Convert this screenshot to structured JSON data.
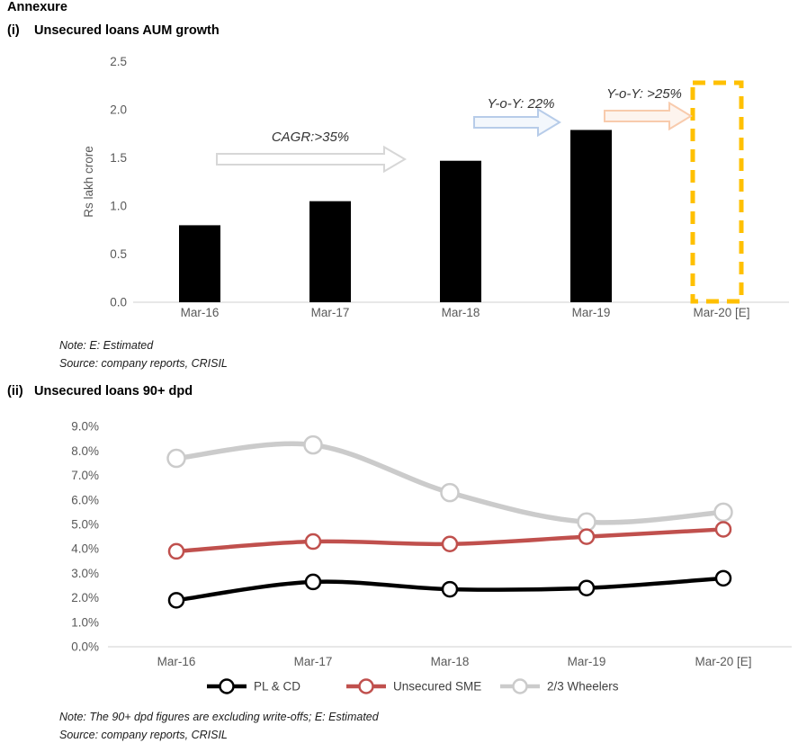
{
  "page": {
    "heading": "Annexure",
    "sections": [
      {
        "index_label": "(i)",
        "title": "Unsecured loans AUM growth",
        "notes": [
          "Note: E: Estimated",
          "Source: company reports, CRISIL"
        ]
      },
      {
        "index_label": "(ii)",
        "title": "Unsecured loans 90+ dpd",
        "notes": [
          "Note: The 90+ dpd figures are excluding write-offs; E: Estimated",
          "Source: company reports, CRISIL"
        ]
      }
    ]
  },
  "colors": {
    "axis_text": "#595959",
    "axis_line": "#d9d9d9",
    "bar": "#000000",
    "estimated_outline": "#FFC000",
    "annotation_text": "#333333",
    "legend_text": "#404040"
  },
  "chart_data": [
    {
      "type": "bar",
      "title": "Unsecured loans AUM growth",
      "ylabel": "Rs lakh crore",
      "xlabel": "",
      "categories": [
        "Mar-16",
        "Mar-17",
        "Mar-18",
        "Mar-19",
        "Mar-20 [E]"
      ],
      "values": [
        0.8,
        1.05,
        1.47,
        1.79,
        null
      ],
      "estimated_bar": {
        "category": "Mar-20 [E]",
        "top_value": 2.28,
        "style": "dashed-outline",
        "color": "#FFC000"
      },
      "ylim": [
        0,
        2.5
      ],
      "ytick_step": 0.5,
      "yticks": [
        "0.0",
        "0.5",
        "1.0",
        "1.5",
        "2.0",
        "2.5"
      ],
      "grid": false,
      "bar_color": "#000000",
      "annotations": [
        {
          "text": "CAGR:>35%",
          "arrow_stroke": "#d7d7d7",
          "arrow_fill": "#ffffff"
        },
        {
          "text": "Y-o-Y: 22%",
          "arrow_stroke": "#b7cce9",
          "arrow_fill": "#f3f7fc"
        },
        {
          "text": "Y-o-Y: >25%",
          "arrow_stroke": "#f8cbad",
          "arrow_fill": "#fdf4ee"
        }
      ]
    },
    {
      "type": "line",
      "title": "Unsecured loans 90+ dpd",
      "categories": [
        "Mar-16",
        "Mar-17",
        "Mar-18",
        "Mar-19",
        "Mar-20 [E]"
      ],
      "series": [
        {
          "name": "PL & CD",
          "color": "#000000",
          "values": [
            1.9,
            2.65,
            2.35,
            2.4,
            2.8
          ]
        },
        {
          "name": "Unsecured SME",
          "color": "#C0504D",
          "values": [
            3.9,
            4.3,
            4.2,
            4.5,
            4.8
          ]
        },
        {
          "name": "2/3 Wheelers",
          "color": "#CBCBCB",
          "values": [
            7.7,
            8.25,
            6.3,
            5.1,
            5.5
          ]
        }
      ],
      "ylim": [
        0,
        9
      ],
      "ytick_step": 1,
      "yticks": [
        "0.0%",
        "1.0%",
        "2.0%",
        "3.0%",
        "4.0%",
        "5.0%",
        "6.0%",
        "7.0%",
        "8.0%",
        "9.0%"
      ],
      "grid": false,
      "legend_position": "bottom"
    }
  ]
}
